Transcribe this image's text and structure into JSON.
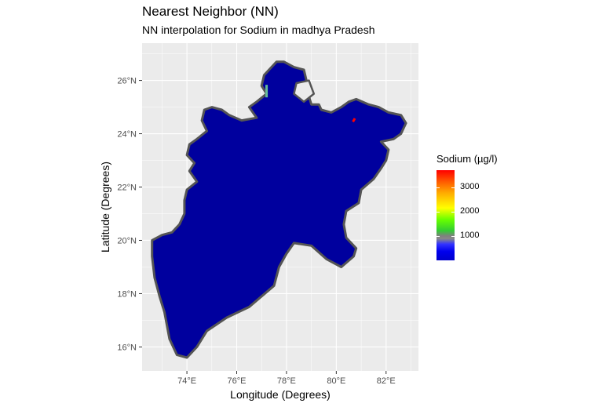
{
  "title": "Nearest Neighbor (NN)",
  "subtitle": "NN interpolation for Sodium in madhya Pradesh",
  "x_axis_title": "Longitude (Degrees)",
  "y_axis_title": "Latitude (Degrees)",
  "x_ticks": [
    {
      "value": 74,
      "label": "74°E"
    },
    {
      "value": 76,
      "label": "76°E"
    },
    {
      "value": 78,
      "label": "78°E"
    },
    {
      "value": 80,
      "label": "80°E"
    },
    {
      "value": 82,
      "label": "82°E"
    }
  ],
  "y_ticks": [
    {
      "value": 16,
      "label": "16°N"
    },
    {
      "value": 18,
      "label": "18°N"
    },
    {
      "value": 20,
      "label": "20°N"
    },
    {
      "value": 22,
      "label": "22°N"
    },
    {
      "value": 24,
      "label": "24°N"
    },
    {
      "value": 26,
      "label": "26°N"
    }
  ],
  "x_range": [
    72.2,
    83.3
  ],
  "y_range": [
    15.1,
    27.4
  ],
  "legend": {
    "title": "Sodium (µg/l)",
    "labels": [
      {
        "value": 1000,
        "label": "1000"
      },
      {
        "value": 2000,
        "label": "2000"
      },
      {
        "value": 3000,
        "label": "3000"
      }
    ],
    "range": [
      0,
      3700
    ],
    "colors": [
      "#0000cc",
      "#808080",
      "#00ff00",
      "#ffff00",
      "#ff0000"
    ]
  },
  "colors": {
    "panel_bg": "#ebebeb",
    "grid": "#ffffff",
    "region_fill": "#00009e",
    "region_border": "#555555",
    "hotspot_red": "#ff0000",
    "hotspot_teal": "#66bb99"
  },
  "map": {
    "outline": [
      [
        73.6,
        15.7
      ],
      [
        74.0,
        15.6
      ],
      [
        74.4,
        16.0
      ],
      [
        74.8,
        16.6
      ],
      [
        75.6,
        17.1
      ],
      [
        76.5,
        17.5
      ],
      [
        77.5,
        18.3
      ],
      [
        77.7,
        19.0
      ],
      [
        78.0,
        19.5
      ],
      [
        78.3,
        19.9
      ],
      [
        79.0,
        19.8
      ],
      [
        79.6,
        19.3
      ],
      [
        80.2,
        19.0
      ],
      [
        80.7,
        19.4
      ],
      [
        80.8,
        19.7
      ],
      [
        80.4,
        20.1
      ],
      [
        80.3,
        20.6
      ],
      [
        80.4,
        21.1
      ],
      [
        80.9,
        21.4
      ],
      [
        81.0,
        21.9
      ],
      [
        81.5,
        22.3
      ],
      [
        81.8,
        22.7
      ],
      [
        82.0,
        23.0
      ],
      [
        82.1,
        23.4
      ],
      [
        81.8,
        23.7
      ],
      [
        82.3,
        23.8
      ],
      [
        82.6,
        24.0
      ],
      [
        82.8,
        24.4
      ],
      [
        82.6,
        24.7
      ],
      [
        82.1,
        24.8
      ],
      [
        81.7,
        25.0
      ],
      [
        81.3,
        25.1
      ],
      [
        80.8,
        25.3
      ],
      [
        80.5,
        25.2
      ],
      [
        80.2,
        25.0
      ],
      [
        79.8,
        24.8
      ],
      [
        79.4,
        24.9
      ],
      [
        79.3,
        25.1
      ],
      [
        79.0,
        25.1
      ],
      [
        78.9,
        25.4
      ],
      [
        79.0,
        25.7
      ],
      [
        78.8,
        26.0
      ],
      [
        78.7,
        26.4
      ],
      [
        78.3,
        26.5
      ],
      [
        77.9,
        26.7
      ],
      [
        77.6,
        26.7
      ],
      [
        77.3,
        26.4
      ],
      [
        77.1,
        26.2
      ],
      [
        77.0,
        25.8
      ],
      [
        77.2,
        25.5
      ],
      [
        76.8,
        25.2
      ],
      [
        76.5,
        25.0
      ],
      [
        76.8,
        24.6
      ],
      [
        76.2,
        24.5
      ],
      [
        75.7,
        24.7
      ],
      [
        75.4,
        24.9
      ],
      [
        75.0,
        25.0
      ],
      [
        74.7,
        24.9
      ],
      [
        74.6,
        24.5
      ],
      [
        74.8,
        24.1
      ],
      [
        74.4,
        23.8
      ],
      [
        74.1,
        23.6
      ],
      [
        74.0,
        23.2
      ],
      [
        74.3,
        22.9
      ],
      [
        74.1,
        22.6
      ],
      [
        74.4,
        22.2
      ],
      [
        74.0,
        21.9
      ],
      [
        73.9,
        21.5
      ],
      [
        73.9,
        21.0
      ],
      [
        73.7,
        20.6
      ],
      [
        73.4,
        20.3
      ],
      [
        73.0,
        20.2
      ],
      [
        72.6,
        20.0
      ],
      [
        72.6,
        19.4
      ],
      [
        72.7,
        18.6
      ],
      [
        72.9,
        17.9
      ],
      [
        73.1,
        17.3
      ],
      [
        73.2,
        16.8
      ],
      [
        73.3,
        16.3
      ]
    ],
    "notch": [
      [
        78.3,
        25.5
      ],
      [
        78.7,
        25.2
      ],
      [
        79.1,
        25.5
      ],
      [
        78.9,
        26.0
      ],
      [
        78.4,
        25.9
      ]
    ],
    "hotspots": [
      {
        "type": "red",
        "lon": 80.7,
        "lat": 24.5
      },
      {
        "type": "teal",
        "lon": 77.2,
        "lat": 25.6
      }
    ]
  }
}
